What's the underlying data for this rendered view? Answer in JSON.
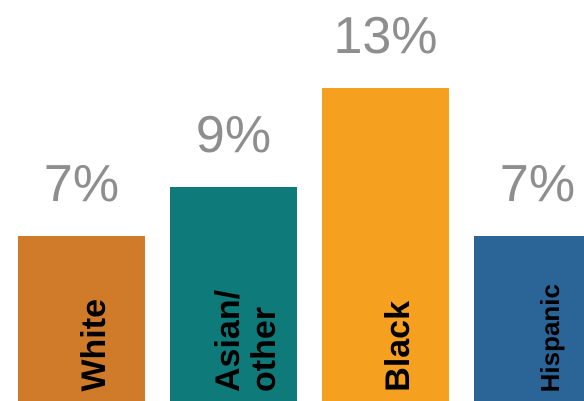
{
  "chart_data": {
    "type": "bar",
    "categories": [
      "White",
      "Asian/ other",
      "Black",
      "Hispanic"
    ],
    "values": [
      7,
      9,
      13,
      7
    ],
    "value_labels": [
      "7%",
      "9%",
      "13%",
      "7%"
    ],
    "colors": [
      "#d07b2a",
      "#0f7a7a",
      "#f5a01f",
      "#2b6597"
    ]
  }
}
